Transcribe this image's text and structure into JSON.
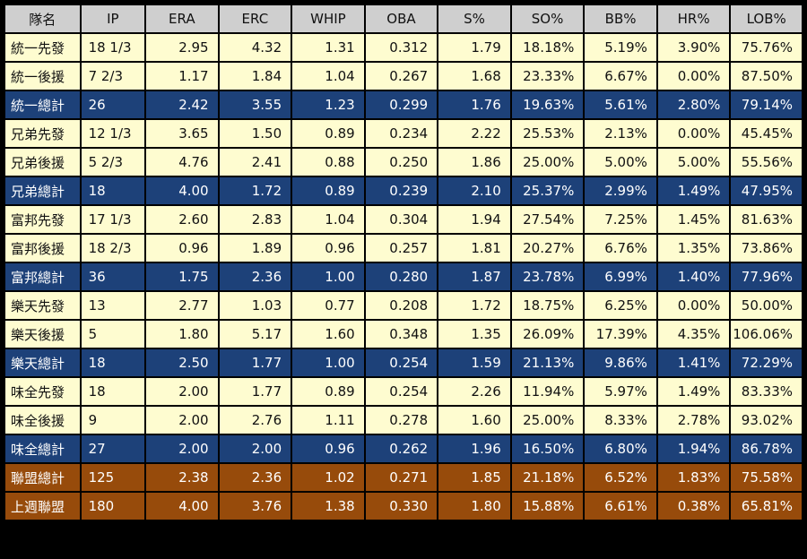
{
  "table": {
    "headers": [
      "隊名",
      "IP",
      "ERA",
      "ERC",
      "WHIP",
      "OBA",
      "S%",
      "SO%",
      "BB%",
      "HR%",
      "LOB%"
    ],
    "rows": [
      {
        "kind": "starter",
        "cells": [
          "統一先發",
          "18 1/3",
          "2.95",
          "4.32",
          "1.31",
          "0.312",
          "1.79",
          "18.18%",
          "5.19%",
          "3.90%",
          "75.76%"
        ]
      },
      {
        "kind": "reliever",
        "cells": [
          "統一後援",
          "7 2/3",
          "1.17",
          "1.84",
          "1.04",
          "0.267",
          "1.68",
          "23.33%",
          "6.67%",
          "0.00%",
          "87.50%"
        ]
      },
      {
        "kind": "total",
        "cells": [
          "統一總計",
          "26",
          "2.42",
          "3.55",
          "1.23",
          "0.299",
          "1.76",
          "19.63%",
          "5.61%",
          "2.80%",
          "79.14%"
        ]
      },
      {
        "kind": "starter",
        "cells": [
          "兄弟先發",
          "12 1/3",
          "3.65",
          "1.50",
          "0.89",
          "0.234",
          "2.22",
          "25.53%",
          "2.13%",
          "0.00%",
          "45.45%"
        ]
      },
      {
        "kind": "reliever",
        "cells": [
          "兄弟後援",
          "5 2/3",
          "4.76",
          "2.41",
          "0.88",
          "0.250",
          "1.86",
          "25.00%",
          "5.00%",
          "5.00%",
          "55.56%"
        ]
      },
      {
        "kind": "total",
        "cells": [
          "兄弟總計",
          "18",
          "4.00",
          "1.72",
          "0.89",
          "0.239",
          "2.10",
          "25.37%",
          "2.99%",
          "1.49%",
          "47.95%"
        ]
      },
      {
        "kind": "starter",
        "cells": [
          "富邦先發",
          "17 1/3",
          "2.60",
          "2.83",
          "1.04",
          "0.304",
          "1.94",
          "27.54%",
          "7.25%",
          "1.45%",
          "81.63%"
        ]
      },
      {
        "kind": "reliever",
        "cells": [
          "富邦後援",
          "18 2/3",
          "0.96",
          "1.89",
          "0.96",
          "0.257",
          "1.81",
          "20.27%",
          "6.76%",
          "1.35%",
          "73.86%"
        ]
      },
      {
        "kind": "total",
        "cells": [
          "富邦總計",
          "36",
          "1.75",
          "2.36",
          "1.00",
          "0.280",
          "1.87",
          "23.78%",
          "6.99%",
          "1.40%",
          "77.96%"
        ]
      },
      {
        "kind": "starter",
        "cells": [
          "樂天先發",
          "13",
          "2.77",
          "1.03",
          "0.77",
          "0.208",
          "1.72",
          "18.75%",
          "6.25%",
          "0.00%",
          "50.00%"
        ]
      },
      {
        "kind": "reliever",
        "cells": [
          "樂天後援",
          "5",
          "1.80",
          "5.17",
          "1.60",
          "0.348",
          "1.35",
          "26.09%",
          "17.39%",
          "4.35%",
          "106.06%"
        ]
      },
      {
        "kind": "total",
        "cells": [
          "樂天總計",
          "18",
          "2.50",
          "1.77",
          "1.00",
          "0.254",
          "1.59",
          "21.13%",
          "9.86%",
          "1.41%",
          "72.29%"
        ]
      },
      {
        "kind": "starter",
        "cells": [
          "味全先發",
          "18",
          "2.00",
          "1.77",
          "0.89",
          "0.254",
          "2.26",
          "11.94%",
          "5.97%",
          "1.49%",
          "83.33%"
        ]
      },
      {
        "kind": "reliever",
        "cells": [
          "味全後援",
          "9",
          "2.00",
          "2.76",
          "1.11",
          "0.278",
          "1.60",
          "25.00%",
          "8.33%",
          "2.78%",
          "93.02%"
        ]
      },
      {
        "kind": "total",
        "cells": [
          "味全總計",
          "27",
          "2.00",
          "2.00",
          "0.96",
          "0.262",
          "1.96",
          "16.50%",
          "6.80%",
          "1.94%",
          "86.78%"
        ]
      },
      {
        "kind": "league",
        "cells": [
          "聯盟總計",
          "125",
          "2.38",
          "2.36",
          "1.02",
          "0.271",
          "1.85",
          "21.18%",
          "6.52%",
          "1.83%",
          "75.58%"
        ]
      },
      {
        "kind": "league",
        "cells": [
          "上週聯盟",
          "180",
          "4.00",
          "3.76",
          "1.38",
          "0.330",
          "1.80",
          "15.88%",
          "6.61%",
          "0.38%",
          "65.81%"
        ]
      }
    ]
  },
  "colors": {
    "header_bg": "#cfcfcf",
    "row_bg": "#fefcd0",
    "team_total_bg": "#1d4179",
    "league_bg": "#974b0b"
  }
}
